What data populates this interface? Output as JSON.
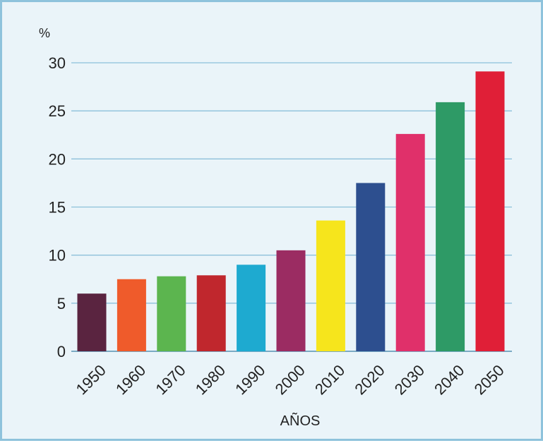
{
  "chart_data": {
    "type": "bar",
    "unit_label": "%",
    "xlabel": "AÑOS",
    "ylabel": "",
    "ylim": [
      0,
      30
    ],
    "yticks": [
      0,
      5,
      10,
      15,
      20,
      25,
      30
    ],
    "grid": true,
    "categories": [
      "1950",
      "1960",
      "1970",
      "1980",
      "1990",
      "2000",
      "2010",
      "2020",
      "2030",
      "2040",
      "2050"
    ],
    "values": [
      6.0,
      7.5,
      7.8,
      7.9,
      9.0,
      10.5,
      13.6,
      17.5,
      22.6,
      25.9,
      29.1
    ],
    "colors": [
      "#5a2440",
      "#ef5b2b",
      "#5cb54f",
      "#c0272d",
      "#1eaad0",
      "#9b2c62",
      "#f6e51c",
      "#2d4f8f",
      "#e0306a",
      "#2e9a66",
      "#e01f37"
    ]
  }
}
